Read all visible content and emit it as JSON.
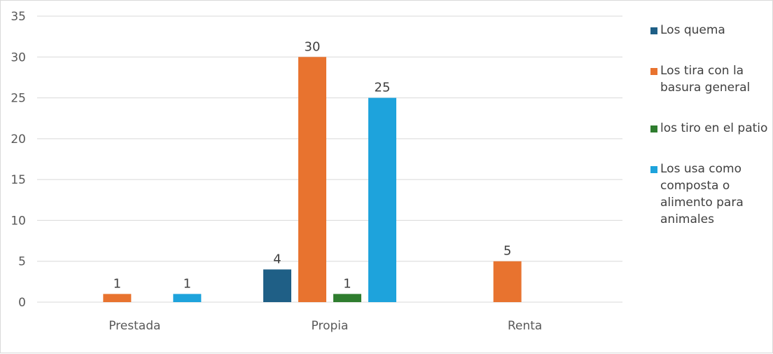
{
  "chart_data": {
    "type": "bar",
    "categories": [
      "Prestada",
      "Propia",
      "Renta"
    ],
    "series": [
      {
        "name": "Los quema",
        "color": "#1f5f86",
        "values": [
          null,
          4,
          null
        ]
      },
      {
        "name": "Los tira con la basura general",
        "color": "#e8732f",
        "values": [
          1,
          30,
          5
        ]
      },
      {
        "name": "los tiro en el patio",
        "color": "#2f7d2f",
        "values": [
          null,
          1,
          null
        ]
      },
      {
        "name": "Los usa como composta o alimento para animales",
        "color": "#1ea3dc",
        "values": [
          1,
          25,
          null
        ]
      }
    ],
    "ylim": [
      0,
      35
    ],
    "yticks": [
      0,
      5,
      10,
      15,
      20,
      25,
      30,
      35
    ],
    "grid": true,
    "legend_position": "right",
    "data_labels": true
  }
}
